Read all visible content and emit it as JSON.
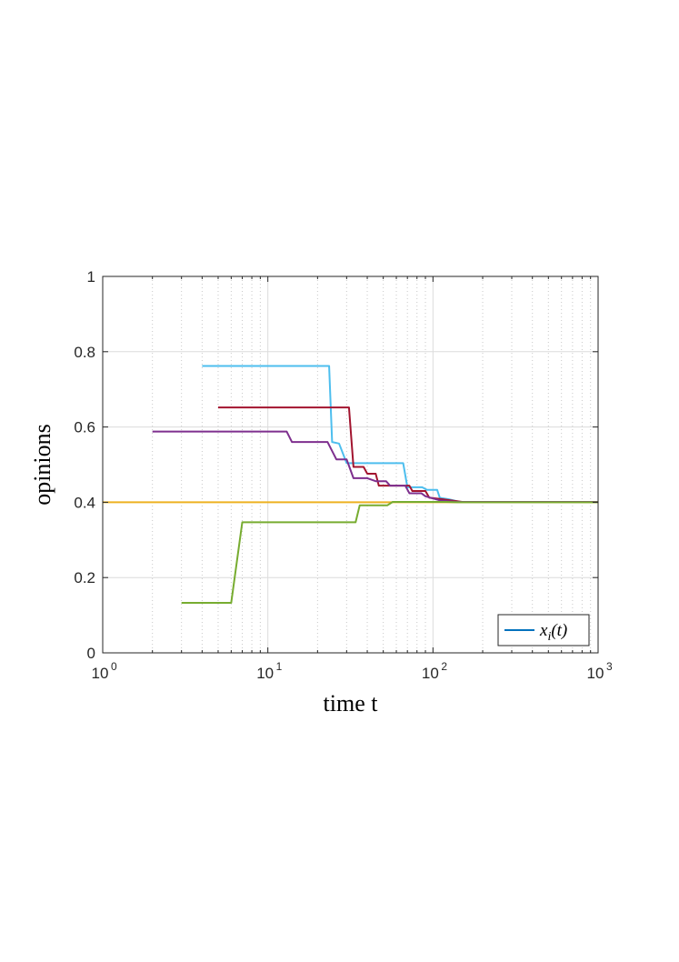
{
  "chart_data": {
    "type": "line",
    "xscale": "log",
    "xlim": [
      1,
      1000
    ],
    "ylim": [
      0,
      1
    ],
    "grid": true,
    "xlabel": "time t",
    "ylabel": "opinions",
    "x_ticks": [
      {
        "base": "10",
        "exp": "0"
      },
      {
        "base": "10",
        "exp": "1"
      },
      {
        "base": "10",
        "exp": "2"
      },
      {
        "base": "10",
        "exp": "3"
      }
    ],
    "y_ticks": [
      "0",
      "0.2",
      "0.4",
      "0.6",
      "0.8",
      "1"
    ],
    "legend": {
      "label": "x_i(t)",
      "location": "bottom-right",
      "color": "#0072BD"
    },
    "series": [
      {
        "color": "#EDB120",
        "x": [
          1,
          1000
        ],
        "y": [
          0.4,
          0.4
        ],
        "step": true
      },
      {
        "color": "#4DBEEE",
        "x": [
          4,
          23.5,
          24.5,
          27,
          30,
          66,
          70,
          86,
          92,
          106,
          110,
          125,
          145,
          1000
        ],
        "y": [
          0.762,
          0.762,
          0.56,
          0.556,
          0.504,
          0.504,
          0.44,
          0.44,
          0.433,
          0.433,
          0.412,
          0.408,
          0.401,
          0.401
        ],
        "step": true
      },
      {
        "color": "#A2142F",
        "x": [
          5,
          31,
          33,
          38,
          40,
          45,
          47,
          72,
          75,
          90,
          95,
          115,
          150,
          1000
        ],
        "y": [
          0.652,
          0.652,
          0.494,
          0.494,
          0.476,
          0.476,
          0.444,
          0.444,
          0.43,
          0.43,
          0.412,
          0.408,
          0.401,
          0.401
        ],
        "step": true
      },
      {
        "color": "#7E2F8E",
        "x": [
          2,
          13,
          14,
          23,
          26,
          30,
          33,
          40,
          45,
          52,
          55,
          68,
          72,
          85,
          90,
          110,
          140,
          1000
        ],
        "y": [
          0.588,
          0.588,
          0.56,
          0.56,
          0.514,
          0.514,
          0.464,
          0.464,
          0.456,
          0.456,
          0.444,
          0.444,
          0.424,
          0.424,
          0.416,
          0.405,
          0.401,
          0.401
        ],
        "step": true
      },
      {
        "color": "#77AC30",
        "x": [
          3,
          6,
          7,
          34,
          36,
          53,
          57,
          120,
          140,
          1000
        ],
        "y": [
          0.133,
          0.133,
          0.347,
          0.347,
          0.392,
          0.392,
          0.401,
          0.401,
          0.4,
          0.4
        ],
        "step": false
      }
    ]
  }
}
